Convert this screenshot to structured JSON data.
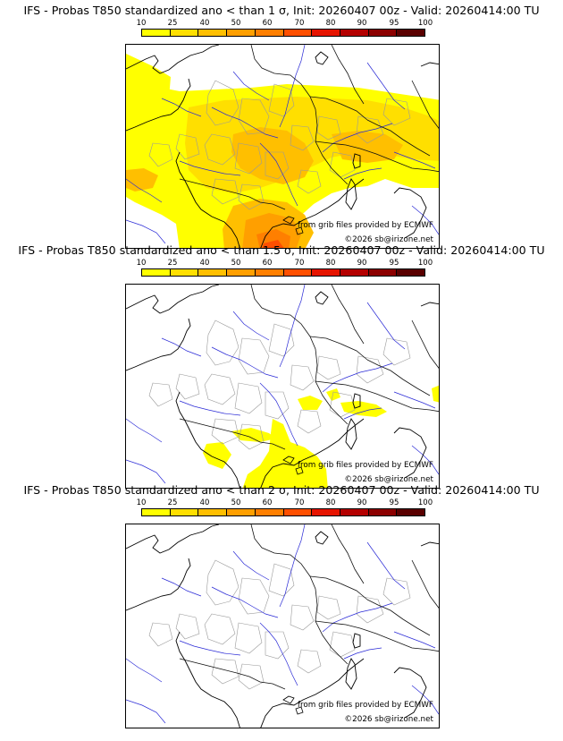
{
  "palette": [
    "#ffff00",
    "#ffdf00",
    "#ffbf00",
    "#ff9f00",
    "#ff7f00",
    "#ff4f00",
    "#e61400",
    "#b40000",
    "#8c0000",
    "#5a0000"
  ],
  "legend_ticks": [
    "10",
    "25",
    "40",
    "50",
    "60",
    "70",
    "80",
    "90",
    "95",
    "100"
  ],
  "panels": [
    {
      "title": "IFS - Probas T850  standardized ano < than 1 σ, Init: 20260407 00z - Valid: 20260414:00 TU",
      "provider": "from grib files provided by ECMWF",
      "copyright": "©2026 sb@irizone.net",
      "sigma_threshold": 1,
      "coverage": "widespread"
    },
    {
      "title": "IFS - Probas T850  standardized ano < than 1.5 σ, Init: 20260407 00z - Valid: 20260414:00 TU",
      "provider": "from grib files provided by ECMWF",
      "copyright": "©2026 sb@irizone.net",
      "sigma_threshold": 1.5,
      "coverage": "scattered"
    },
    {
      "title": "IFS - Probas T850  standardized ano < than 2 σ, Init: 20260407 00z - Valid: 20260414:00 TU",
      "provider": "from grib files provided by ECMWF",
      "copyright": "©2026 sb@irizone.net",
      "sigma_threshold": 2,
      "coverage": "none"
    }
  ]
}
